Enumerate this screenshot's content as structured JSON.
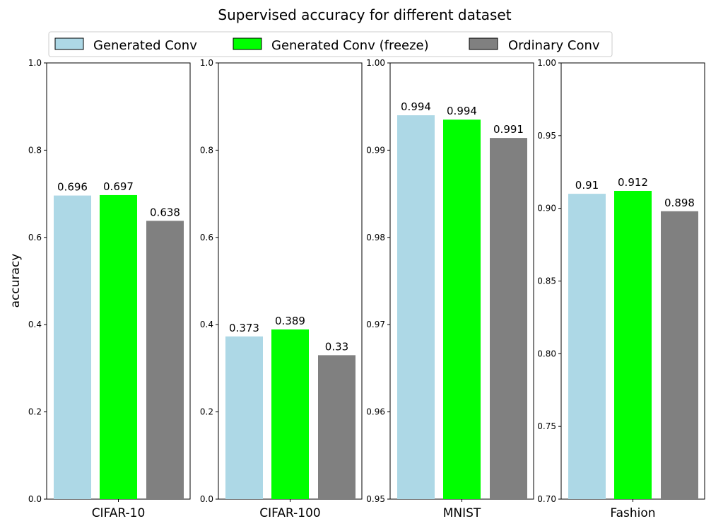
{
  "chart_data": {
    "type": "bar",
    "title": "Supervised accuracy for different dataset",
    "ylabel": "accuracy",
    "legend": {
      "placement": "top-center",
      "entries": [
        {
          "name": "Generated Conv",
          "color": "#add8e6"
        },
        {
          "name": "Generated Conv (freeze)",
          "color": "#00ff00"
        },
        {
          "name": "Ordinary Conv",
          "color": "#808080"
        }
      ]
    },
    "panels": [
      {
        "category": "CIFAR-10",
        "ylim": [
          0,
          1.0
        ],
        "yticks": [
          "0.0",
          "0.2",
          "0.4",
          "0.6",
          "0.8",
          "1.0"
        ],
        "ytick_values": [
          0,
          0.2,
          0.4,
          0.6,
          0.8,
          1.0
        ],
        "values": [
          0.696,
          0.697,
          0.638
        ],
        "labels": [
          "0.696",
          "0.697",
          "0.638"
        ]
      },
      {
        "category": "CIFAR-100",
        "ylim": [
          0,
          1.0
        ],
        "yticks": [
          "0.0",
          "0.2",
          "0.4",
          "0.6",
          "0.8",
          "1.0"
        ],
        "ytick_values": [
          0,
          0.2,
          0.4,
          0.6,
          0.8,
          1.0
        ],
        "values": [
          0.373,
          0.389,
          0.33
        ],
        "labels": [
          "0.373",
          "0.389",
          "0.33"
        ]
      },
      {
        "category": "MNIST",
        "ylim": [
          0.95,
          1.0
        ],
        "yticks": [
          "0.95",
          "0.96",
          "0.97",
          "0.98",
          "0.99",
          "1.00"
        ],
        "ytick_values": [
          0.95,
          0.96,
          0.97,
          0.98,
          0.99,
          1.0
        ],
        "values": [
          0.994,
          0.9935,
          0.9914
        ],
        "labels": [
          "0.994",
          "0.994",
          "0.991"
        ]
      },
      {
        "category": "Fashion",
        "ylim": [
          0.7,
          1.0
        ],
        "yticks": [
          "0.70",
          "0.75",
          "0.80",
          "0.85",
          "0.90",
          "0.95",
          "1.00"
        ],
        "ytick_values": [
          0.7,
          0.75,
          0.8,
          0.85,
          0.9,
          0.95,
          1.0
        ],
        "values": [
          0.91,
          0.912,
          0.898
        ],
        "labels": [
          "0.91",
          "0.912",
          "0.898"
        ]
      }
    ]
  }
}
